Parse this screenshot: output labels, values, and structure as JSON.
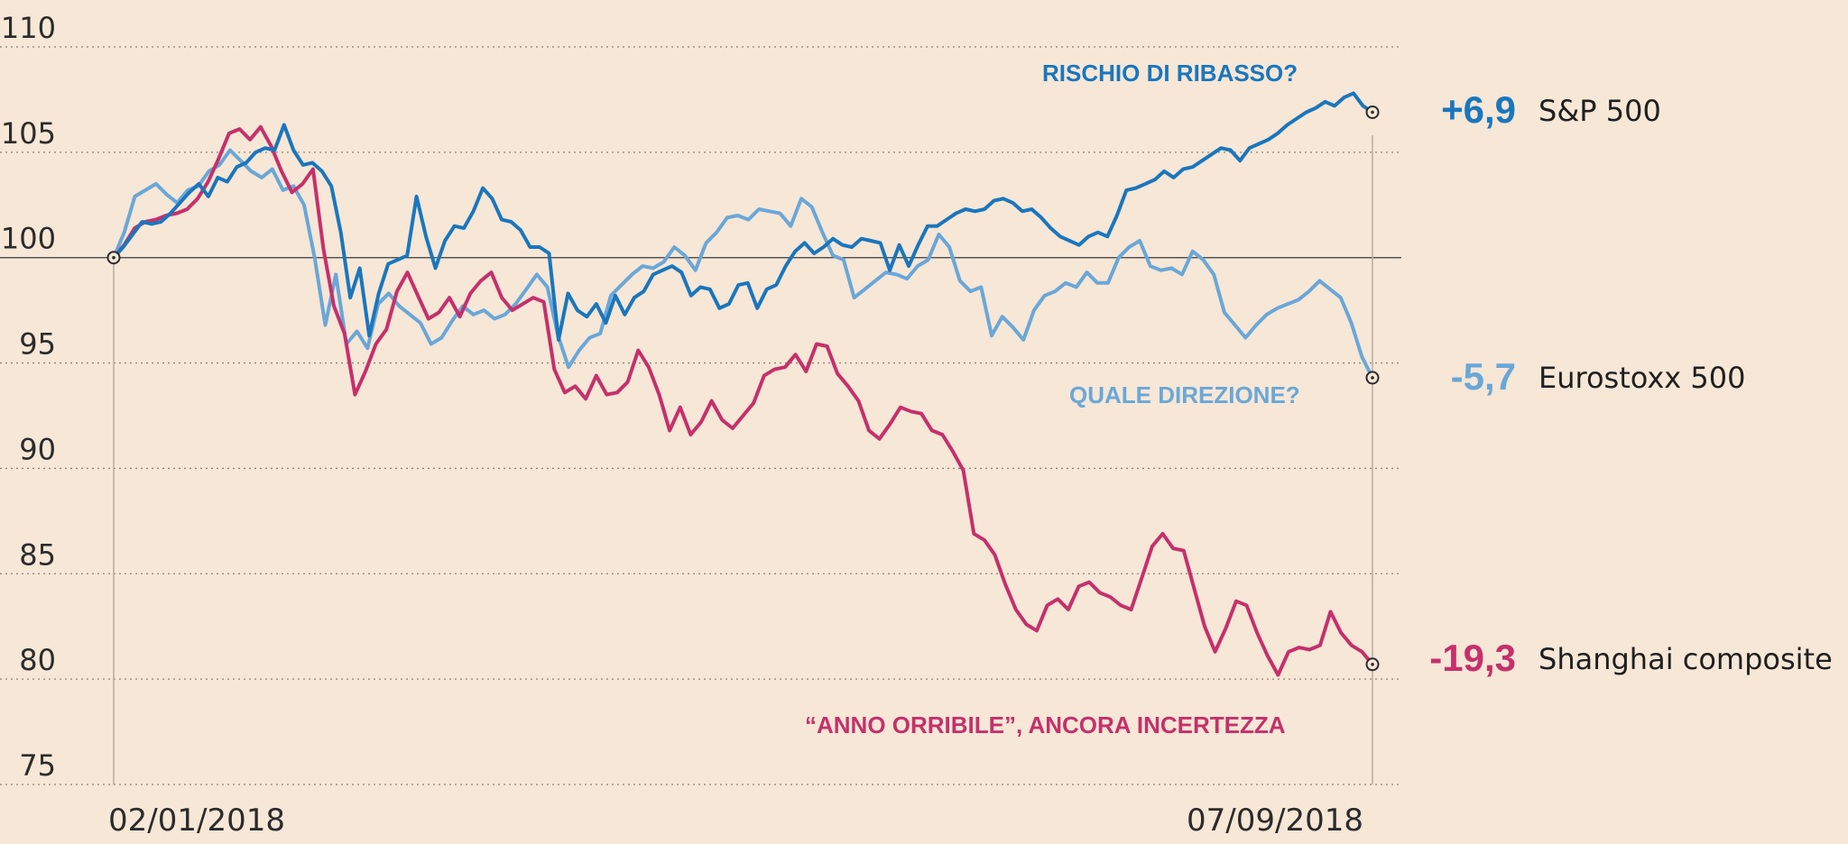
{
  "chart_data": {
    "type": "line",
    "ylim": [
      75,
      110
    ],
    "yticks": [
      110,
      105,
      100,
      95,
      90,
      85,
      80,
      75
    ],
    "x_labels": [
      "02/01/2018",
      "07/09/2018"
    ],
    "baseline": 100,
    "grid": true,
    "series": [
      {
        "name": "S&P 500",
        "color": "#1a76bd",
        "end_label": "+6,9",
        "values": [
          100,
          100.5,
          101.1,
          101.7,
          101.6,
          101.7,
          102.1,
          102.6,
          103.1,
          103.5,
          102.9,
          103.8,
          103.6,
          104.3,
          104.5,
          105,
          105.2,
          105.1,
          106.3,
          105.1,
          104.4,
          104.5,
          104.1,
          103.4,
          101.2,
          98.1,
          99.5,
          96.3,
          98.3,
          99.7,
          99.9,
          100.1,
          102.9,
          101,
          99.5,
          100.8,
          101.5,
          101.4,
          102.2,
          103.3,
          102.8,
          101.8,
          101.7,
          101.3,
          100.5,
          100.5,
          100.2,
          96.1,
          98.3,
          97.5,
          97.2,
          97.8,
          96.9,
          98.2,
          97.3,
          98.1,
          98.4,
          99.2,
          99.4,
          99.6,
          99.3,
          98.2,
          98.6,
          98.5,
          97.6,
          97.8,
          98.7,
          98.8,
          97.6,
          98.5,
          98.7,
          99.6,
          100.3,
          100.7,
          100.2,
          100.5,
          100.9,
          100.6,
          100.5,
          100.9,
          100.8,
          100.7,
          99.4,
          100.6,
          99.6,
          100.6,
          101.5,
          101.5,
          101.8,
          102.1,
          102.3,
          102.2,
          102.3,
          102.7,
          102.8,
          102.6,
          102.2,
          102.3,
          101.9,
          101.4,
          101,
          100.8,
          100.6,
          101,
          101.2,
          101,
          102,
          103.2,
          103.3,
          103.5,
          103.7,
          104.1,
          103.8,
          104.2,
          104.3,
          104.6,
          104.9,
          105.2,
          105.1,
          104.6,
          105.2,
          105.4,
          105.6,
          105.9,
          106.3,
          106.6,
          106.9,
          107.1,
          107.4,
          107.2,
          107.6,
          107.8,
          107.2,
          106.9
        ]
      },
      {
        "name": "Eurostoxx 500",
        "color": "#6aa7d8",
        "end_label": "-5,7",
        "values": [
          100,
          101.2,
          102.9,
          103.2,
          103.5,
          103,
          102.6,
          103.2,
          103.4,
          104.1,
          104.4,
          105.1,
          104.6,
          104.1,
          103.8,
          104.2,
          103.2,
          103.4,
          102.5,
          100,
          96.8,
          99.2,
          95.9,
          96.5,
          95.7,
          97.8,
          98.3,
          97.7,
          97.3,
          96.9,
          95.9,
          96.2,
          97,
          97.7,
          97.3,
          97.5,
          97.1,
          97.3,
          97.8,
          98.5,
          99.2,
          98.6,
          96.3,
          94.8,
          95.6,
          96.2,
          96.4,
          98.2,
          98.7,
          99.2,
          99.6,
          99.5,
          99.8,
          100.5,
          100.1,
          99.4,
          100.7,
          101.2,
          101.9,
          102,
          101.8,
          102.3,
          102.2,
          102.1,
          101.5,
          102.8,
          102.4,
          101.2,
          100.1,
          99.9,
          98.1,
          98.5,
          98.9,
          99.3,
          99.2,
          99,
          99.6,
          99.9,
          101.1,
          100.5,
          98.9,
          98.4,
          98.6,
          96.3,
          97.2,
          96.7,
          96.1,
          97.5,
          98.2,
          98.4,
          98.8,
          98.6,
          99.3,
          98.8,
          98.8,
          100,
          100.5,
          100.8,
          99.6,
          99.4,
          99.5,
          99.2,
          100.3,
          99.9,
          99.2,
          97.4,
          96.8,
          96.2,
          96.8,
          97.3,
          97.6,
          97.8,
          98,
          98.4,
          98.9,
          98.5,
          98.1,
          96.9,
          95.3,
          94.3
        ]
      },
      {
        "name": "Shanghai composite",
        "color": "#c5306b",
        "end_label": "-19,3",
        "values": [
          100,
          100.6,
          101.4,
          101.7,
          101.8,
          102,
          102.1,
          102.3,
          102.8,
          103.6,
          104.7,
          105.9,
          106.1,
          105.6,
          106.2,
          105.3,
          104.1,
          103.1,
          103.5,
          104.2,
          100.4,
          97.7,
          96.4,
          93.5,
          94.6,
          95.9,
          96.6,
          98.4,
          99.3,
          98.2,
          97.1,
          97.4,
          98.1,
          97.2,
          98.3,
          98.9,
          99.3,
          98.1,
          97.5,
          97.8,
          98.1,
          97.9,
          94.7,
          93.6,
          93.9,
          93.3,
          94.4,
          93.5,
          93.6,
          94.1,
          95.6,
          94.8,
          93.5,
          91.8,
          92.9,
          91.6,
          92.2,
          93.2,
          92.3,
          91.9,
          92.5,
          93.1,
          94.4,
          94.7,
          94.8,
          95.4,
          94.6,
          95.9,
          95.8,
          94.5,
          93.9,
          93.2,
          91.8,
          91.4,
          92.1,
          92.9,
          92.7,
          92.6,
          91.8,
          91.6,
          90.8,
          89.9,
          86.9,
          86.6,
          85.9,
          84.5,
          83.3,
          82.6,
          82.3,
          83.5,
          83.8,
          83.3,
          84.4,
          84.6,
          84.1,
          83.9,
          83.5,
          83.3,
          84.8,
          86.3,
          86.9,
          86.2,
          86.1,
          84.3,
          82.5,
          81.3,
          82.4,
          83.7,
          83.5,
          82.2,
          81.1,
          80.2,
          81.3,
          81.5,
          81.4,
          81.6,
          83.2,
          82.2,
          81.6,
          81.3,
          80.7
        ]
      }
    ],
    "annotations": [
      {
        "text": "RISCHIO DI RIBASSO?",
        "color": "#1a76bd"
      },
      {
        "text": "QUALE DIREZIONE?",
        "color": "#6aa7d8"
      },
      {
        "text": "“ANNO ORRIBILE”, ANCORA INCERTEZZA",
        "color": "#c5306b"
      }
    ]
  }
}
